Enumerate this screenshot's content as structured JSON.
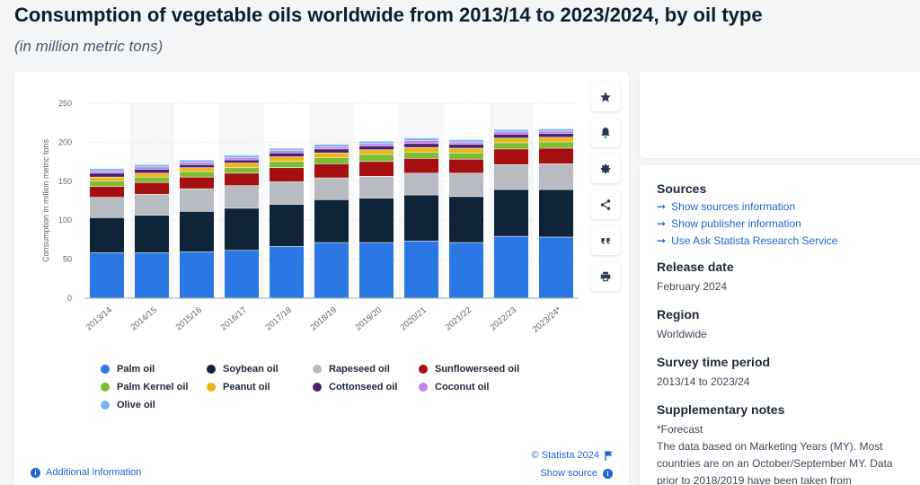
{
  "page": {
    "title": "Consumption of vegetable oils worldwide from 2013/14 to 2023/2024, by oil type",
    "subtitle": "(in million metric tons)"
  },
  "toolbar": {
    "icons": [
      "star-icon",
      "bell-icon",
      "gear-icon",
      "share-icon",
      "quote-icon",
      "print-icon"
    ]
  },
  "footer": {
    "credit": "© Statista 2024",
    "show_source": "Show source",
    "additional_information": "Additional Information"
  },
  "panel": {
    "sources_heading": "Sources",
    "source_links": [
      "Show sources information",
      "Show publisher information",
      "Use Ask Statista Research Service"
    ],
    "release_heading": "Release date",
    "release_value": "February 2024",
    "region_heading": "Region",
    "region_value": "Worldwide",
    "survey_heading": "Survey time period",
    "survey_value": "2013/14 to 2023/24",
    "notes_heading": "Supplementary notes",
    "notes_line1": "*Forecast",
    "notes_line2": "The data based on Marketing Years (MY). Most countries are on an October/September MY. Data prior to 2018/2019 have been taken from"
  },
  "chart_data": {
    "type": "bar",
    "stacked": true,
    "ylabel": "Consumption in million metric tons",
    "xlabel": "",
    "ylim": [
      0,
      250
    ],
    "yticks": [
      0,
      50,
      100,
      150,
      200,
      250
    ],
    "grid": true,
    "legend_position": "bottom",
    "categories": [
      "2013/14",
      "2014/15",
      "2015/16",
      "2016/17",
      "2017/18",
      "2018/19",
      "2019/20",
      "2020/21",
      "2021/22",
      "2022/23",
      "2023/24*"
    ],
    "series": [
      {
        "name": "Palm oil",
        "color": "#2b78e4",
        "values": [
          58,
          58,
          59,
          61,
          66,
          71,
          71,
          73,
          71,
          79,
          78
        ]
      },
      {
        "name": "Soybean oil",
        "color": "#0f2339",
        "values": [
          45,
          48,
          52,
          54,
          54,
          55,
          57,
          59,
          59,
          60,
          61
        ]
      },
      {
        "name": "Rapeseed oil",
        "color": "#b8bcc2",
        "values": [
          26,
          27,
          29,
          29,
          29,
          28,
          28,
          28,
          30,
          32,
          33
        ]
      },
      {
        "name": "Sunflowerseed oil",
        "color": "#a50f0f",
        "values": [
          14,
          15,
          15,
          16,
          18,
          18,
          19,
          19,
          18,
          20,
          20
        ]
      },
      {
        "name": "Palm Kernel oil",
        "color": "#7cbe31",
        "values": [
          7,
          7,
          7,
          7,
          8,
          8,
          9,
          8,
          8,
          8,
          8
        ]
      },
      {
        "name": "Peanut oil",
        "color": "#f0b418",
        "values": [
          5,
          5,
          5,
          6,
          6,
          6,
          6,
          6,
          6,
          6,
          6
        ]
      },
      {
        "name": "Cottonseed oil",
        "color": "#4a2070",
        "values": [
          5,
          5,
          4,
          4,
          5,
          5,
          5,
          5,
          5,
          5,
          5
        ]
      },
      {
        "name": "Coconut oil",
        "color": "#c383e8",
        "values": [
          3,
          3,
          3,
          3,
          3,
          3,
          3,
          4,
          3,
          3,
          3
        ]
      },
      {
        "name": "Olive oil",
        "color": "#7ab4f0",
        "values": [
          3,
          3,
          3,
          3,
          3,
          3,
          3,
          3,
          3,
          3,
          3
        ]
      }
    ]
  }
}
